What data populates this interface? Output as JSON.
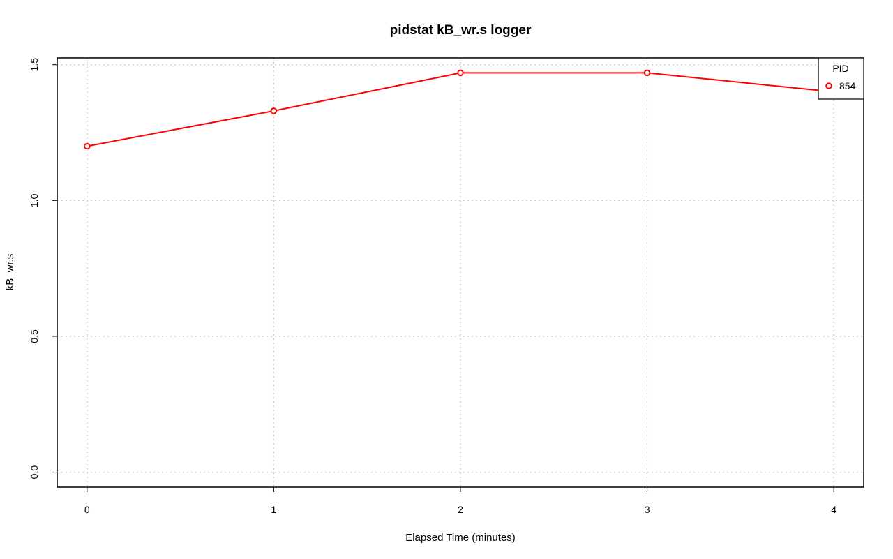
{
  "chart_data": {
    "type": "line",
    "title": "pidstat kB_wr.s logger",
    "xlabel": "Elapsed Time (minutes)",
    "ylabel": "kB_wr.s",
    "xlim": [
      -0.16,
      4.16
    ],
    "ylim": [
      -0.055,
      1.525
    ],
    "x_ticks": [
      0,
      1,
      2,
      3,
      4
    ],
    "y_ticks": [
      0.0,
      0.5,
      1.0,
      1.5
    ],
    "x_tick_labels": [
      "0",
      "1",
      "2",
      "3",
      "4"
    ],
    "y_tick_labels": [
      "0.0",
      "0.5",
      "1.0",
      "1.5"
    ],
    "grid": true,
    "legend": {
      "title": "PID",
      "placement": "top-right",
      "entries": [
        "854"
      ]
    },
    "series": [
      {
        "name": "854",
        "color": "#ff0000",
        "x": [
          0,
          1,
          2,
          3,
          4
        ],
        "y": [
          1.2,
          1.33,
          1.47,
          1.47,
          1.4
        ]
      }
    ]
  }
}
